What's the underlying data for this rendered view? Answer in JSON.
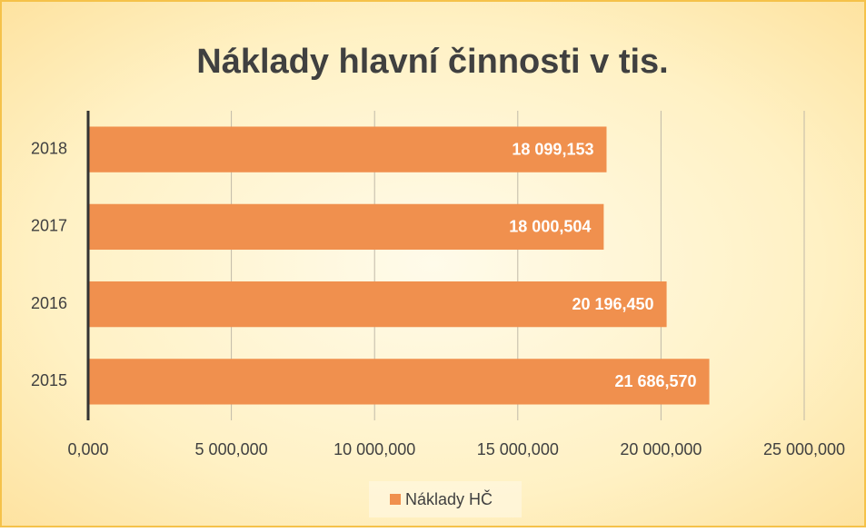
{
  "chart_data": {
    "type": "bar",
    "orientation": "horizontal",
    "title": "Náklady hlavní činnosti v tis.",
    "categories": [
      "2018",
      "2017",
      "2016",
      "2015"
    ],
    "series": [
      {
        "name": "Náklady HČ",
        "color": "#f0904e",
        "values": [
          18099.153,
          18000.504,
          20196.45,
          21686.57
        ],
        "value_labels": [
          "18 099,153",
          "18 000,504",
          "20 196,450",
          "21 686,570"
        ]
      }
    ],
    "xlim": [
      0,
      25000
    ],
    "xticks": [
      {
        "value": 0,
        "label": "0,000"
      },
      {
        "value": 5000,
        "label": "5 000,000"
      },
      {
        "value": 10000,
        "label": "10 000,000"
      },
      {
        "value": 15000,
        "label": "15 000,000"
      },
      {
        "value": 20000,
        "label": "20 000,000"
      },
      {
        "value": 25000,
        "label": "25 000,000"
      }
    ],
    "grid": true,
    "legend": "bottom"
  }
}
